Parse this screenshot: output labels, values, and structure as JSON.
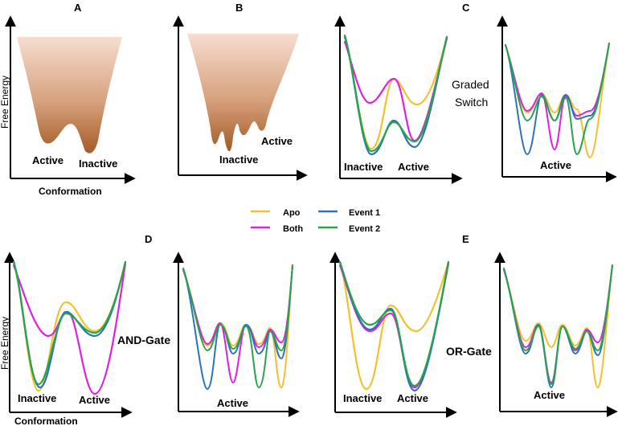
{
  "panels": {
    "A": "A",
    "B": "B",
    "C": "C",
    "D": "D",
    "E": "E"
  },
  "axes": {
    "free_energy": "Free Energy",
    "conformation": "Conformation"
  },
  "states": {
    "active": "Active",
    "inactive": "Inactive"
  },
  "switch_types": {
    "graded_line1": "Graded",
    "graded_line2": "Switch",
    "and_gate": "AND-Gate",
    "or_gate": "OR-Gate"
  },
  "legend": [
    {
      "label": "Apo",
      "color": "#f2c12e"
    },
    {
      "label": "Both",
      "color": "#e020e0"
    },
    {
      "label": "Event 1",
      "color": "#2a74b8"
    },
    {
      "label": "Event 2",
      "color": "#2aa44a"
    }
  ],
  "colors": {
    "funnel_top": "#f6ddd0",
    "funnel_bottom": "#a8602a",
    "axis": "#000000"
  }
}
